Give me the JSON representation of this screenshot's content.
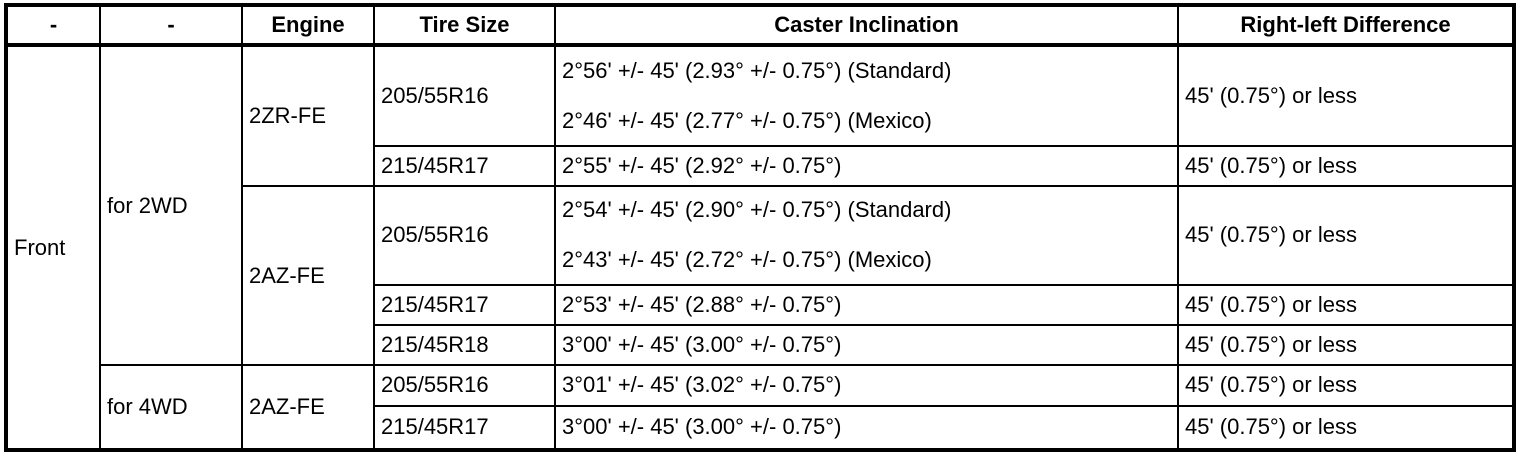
{
  "table": {
    "headers": {
      "axle": "-",
      "drivetrain": "-",
      "engine": "Engine",
      "tire_size": "Tire Size",
      "caster": "Caster Inclination",
      "diff": "Right-left Difference"
    },
    "axle_label": "Front",
    "sections": [
      {
        "drivetrain": "for 2WD",
        "engines": [
          {
            "name": "2ZR-FE",
            "rows": [
              {
                "tire": "205/55R16",
                "caster": [
                  "2°56' +/- 45' (2.93° +/- 0.75°) (Standard)",
                  "2°46' +/- 45' (2.77° +/- 0.75°) (Mexico)"
                ],
                "diff": "45' (0.75°) or less"
              },
              {
                "tire": "215/45R17",
                "caster": [
                  "2°55' +/- 45' (2.92° +/- 0.75°)"
                ],
                "diff": "45' (0.75°) or less"
              }
            ]
          },
          {
            "name": "2AZ-FE",
            "rows": [
              {
                "tire": "205/55R16",
                "caster": [
                  "2°54' +/- 45' (2.90° +/- 0.75°) (Standard)",
                  "2°43' +/- 45' (2.72° +/- 0.75°) (Mexico)"
                ],
                "diff": "45' (0.75°) or less"
              },
              {
                "tire": "215/45R17",
                "caster": [
                  "2°53' +/- 45' (2.88° +/- 0.75°)"
                ],
                "diff": "45' (0.75°) or less"
              },
              {
                "tire": "215/45R18",
                "caster": [
                  "3°00' +/- 45' (3.00° +/- 0.75°)"
                ],
                "diff": "45' (0.75°) or less"
              }
            ]
          }
        ]
      },
      {
        "drivetrain": "for 4WD",
        "engines": [
          {
            "name": "2AZ-FE",
            "rows": [
              {
                "tire": "205/55R16",
                "caster": [
                  "3°01' +/- 45' (3.02° +/- 0.75°)"
                ],
                "diff": "45' (0.75°) or less"
              },
              {
                "tire": "215/45R17",
                "caster": [
                  "3°00' +/- 45' (3.00° +/- 0.75°)"
                ],
                "diff": "45' (0.75°) or less"
              }
            ]
          }
        ]
      }
    ]
  }
}
